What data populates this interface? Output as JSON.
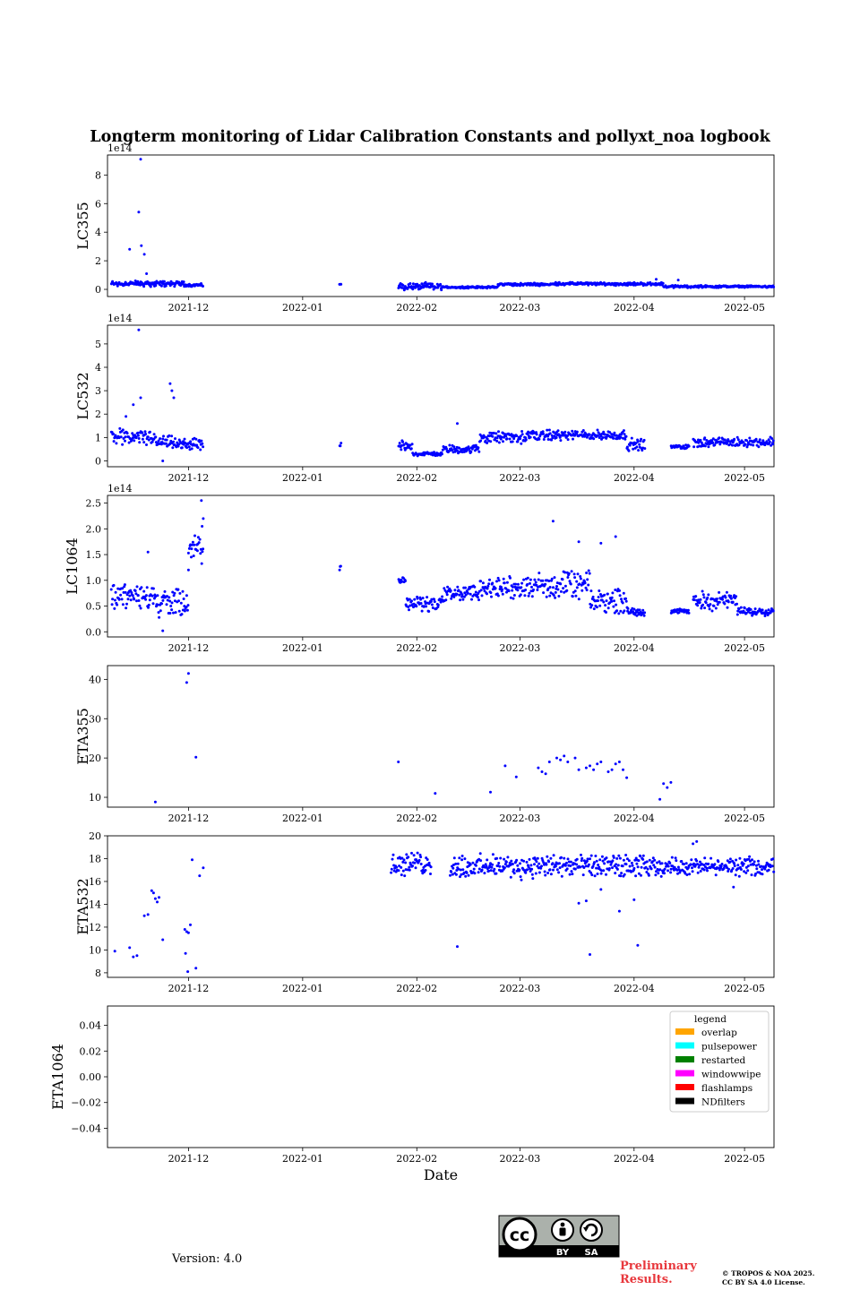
{
  "title": "Longterm monitoring of Lidar Calibration Constants and pollyxt_noa logbook",
  "chart_data": {
    "type": "scatter",
    "series_color": "#0000ff",
    "x_ticks": [
      "2021-12",
      "2022-01",
      "2022-02",
      "2022-03",
      "2022-04",
      "2022-05"
    ],
    "x_ticks_day": [
      31,
      62,
      93,
      121,
      152,
      182
    ],
    "x_range_day": [
      9,
      190
    ],
    "xlabel": "Date",
    "panels": [
      {
        "id": "lc355",
        "ylabel": "LC355",
        "offset_label": "1e14",
        "ylim": [
          -0.5,
          9.4
        ],
        "yticks": [
          0,
          2,
          4,
          6,
          8
        ],
        "ytick_labels": [
          "0",
          "2",
          "4",
          "6",
          "8"
        ],
        "segments": [
          [
            10,
            30,
            0.4,
            0.25
          ],
          [
            30,
            35,
            0.3,
            0.12
          ],
          [
            72,
            72.5,
            0.35,
            0.05
          ],
          [
            88,
            100,
            0.2,
            0.3
          ],
          [
            100,
            115,
            0.15,
            0.08
          ],
          [
            115,
            130,
            0.35,
            0.12
          ],
          [
            130,
            140,
            0.4,
            0.12
          ],
          [
            140,
            160,
            0.38,
            0.12
          ],
          [
            160,
            175,
            0.2,
            0.1
          ],
          [
            175,
            190,
            0.2,
            0.08
          ]
        ],
        "outliers": [
          [
            18,
            9.1
          ],
          [
            17.5,
            5.4
          ],
          [
            15,
            2.8
          ],
          [
            18.2,
            3.05
          ],
          [
            19,
            2.45
          ],
          [
            19.6,
            1.1
          ],
          [
            158,
            0.7
          ],
          [
            164,
            0.65
          ]
        ]
      },
      {
        "id": "lc532",
        "ylabel": "LC532",
        "offset_label": "1e14",
        "ylim": [
          -0.25,
          5.8
        ],
        "yticks": [
          0,
          1,
          2,
          3,
          4,
          5
        ],
        "ytick_labels": [
          "0",
          "1",
          "2",
          "3",
          "4",
          "5"
        ],
        "segments": [
          [
            10,
            22,
            1.0,
            0.4
          ],
          [
            22,
            27,
            0.8,
            0.3
          ],
          [
            27,
            35,
            0.7,
            0.3
          ],
          [
            72,
            72.5,
            0.7,
            0.1
          ],
          [
            88,
            92,
            0.6,
            0.3
          ],
          [
            92,
            100,
            0.3,
            0.1
          ],
          [
            100,
            110,
            0.5,
            0.2
          ],
          [
            110,
            123,
            1.0,
            0.3
          ],
          [
            123,
            150,
            1.1,
            0.25
          ],
          [
            150,
            155,
            0.7,
            0.3
          ],
          [
            162,
            167,
            0.6,
            0.1
          ],
          [
            168,
            190,
            0.8,
            0.25
          ]
        ],
        "outliers": [
          [
            17.5,
            5.6
          ],
          [
            16,
            2.4
          ],
          [
            18,
            2.7
          ],
          [
            26,
            3.3
          ],
          [
            26.5,
            3.0
          ],
          [
            27,
            2.7
          ],
          [
            24,
            0
          ],
          [
            14,
            1.9
          ],
          [
            104,
            1.6
          ]
        ]
      },
      {
        "id": "lc1064",
        "ylabel": "LC1064",
        "offset_label": "1e14",
        "ylim": [
          -0.1,
          2.65
        ],
        "yticks": [
          0,
          0.5,
          1.0,
          1.5,
          2.0,
          2.5
        ],
        "ytick_labels": [
          "0.0",
          "0.5",
          "1.0",
          "1.5",
          "2.0",
          "2.5"
        ],
        "segments": [
          [
            10,
            22,
            0.7,
            0.3
          ],
          [
            22,
            31,
            0.55,
            0.35
          ],
          [
            31,
            35,
            1.6,
            0.3
          ],
          [
            72,
            72.5,
            1.2,
            0.1
          ],
          [
            88,
            90,
            1.0,
            0.1
          ],
          [
            90,
            100,
            0.55,
            0.2
          ],
          [
            100,
            110,
            0.75,
            0.2
          ],
          [
            110,
            123,
            0.85,
            0.25
          ],
          [
            123,
            140,
            0.9,
            0.3
          ],
          [
            140,
            150,
            0.6,
            0.3
          ],
          [
            150,
            155,
            0.4,
            0.1
          ],
          [
            162,
            167,
            0.4,
            0.05
          ],
          [
            168,
            180,
            0.6,
            0.2
          ],
          [
            180,
            190,
            0.4,
            0.1
          ]
        ],
        "outliers": [
          [
            34.5,
            2.55
          ],
          [
            35,
            2.2
          ],
          [
            34.7,
            2.05
          ],
          [
            24,
            0.02
          ],
          [
            20,
            1.55
          ],
          [
            31,
            1.2
          ],
          [
            130,
            2.15
          ],
          [
            147,
            1.85
          ],
          [
            143,
            1.72
          ],
          [
            137,
            1.75
          ]
        ]
      },
      {
        "id": "eta355",
        "ylabel": "ETA355",
        "offset_label": "",
        "ylim": [
          7.5,
          43.5
        ],
        "yticks": [
          10,
          20,
          30,
          40
        ],
        "ytick_labels": [
          "10",
          "20",
          "30",
          "40"
        ],
        "segments": [],
        "outliers": [
          [
            31,
            41.5
          ],
          [
            30.5,
            39.2
          ],
          [
            33,
            20.2
          ],
          [
            22,
            8.8
          ],
          [
            88,
            19
          ],
          [
            98,
            11
          ],
          [
            113,
            11.3
          ],
          [
            117,
            18
          ],
          [
            120,
            15.2
          ],
          [
            126,
            17.5
          ],
          [
            127,
            16.5
          ],
          [
            128,
            16
          ],
          [
            129,
            19
          ],
          [
            131,
            20
          ],
          [
            132,
            19.5
          ],
          [
            133,
            20.5
          ],
          [
            134,
            19
          ],
          [
            136,
            20
          ],
          [
            137,
            17
          ],
          [
            139,
            17.5
          ],
          [
            140,
            18
          ],
          [
            141,
            17
          ],
          [
            142,
            18.5
          ],
          [
            143,
            19
          ],
          [
            145,
            16.5
          ],
          [
            146,
            17
          ],
          [
            147,
            18.5
          ],
          [
            148,
            19
          ],
          [
            149,
            17
          ],
          [
            150,
            15
          ],
          [
            159,
            9.5
          ],
          [
            160,
            13.5
          ],
          [
            161,
            12.5
          ],
          [
            162,
            13.8
          ]
        ]
      },
      {
        "id": "eta532",
        "ylabel": "ETA532",
        "offset_label": "",
        "ylim": [
          7.6,
          20
        ],
        "yticks": [
          8,
          10,
          12,
          14,
          16,
          18,
          20
        ],
        "ytick_labels": [
          "8",
          "10",
          "12",
          "14",
          "16",
          "18",
          "20"
        ],
        "segments": [
          [
            86,
            97,
            17.5,
            1.2
          ],
          [
            102,
            155,
            17.3,
            1.2
          ],
          [
            155,
            190,
            17.3,
            0.9
          ]
        ],
        "outliers": [
          [
            11,
            9.9
          ],
          [
            15,
            10.2
          ],
          [
            16,
            9.4
          ],
          [
            17,
            9.5
          ],
          [
            19,
            13
          ],
          [
            20,
            13.1
          ],
          [
            21,
            15.2
          ],
          [
            21.5,
            15.0
          ],
          [
            22,
            14.5
          ],
          [
            22.5,
            14.2
          ],
          [
            23,
            14.6
          ],
          [
            24,
            10.9
          ],
          [
            30,
            11.8
          ],
          [
            30.5,
            11.6
          ],
          [
            31,
            11.5
          ],
          [
            31.5,
            12.2
          ],
          [
            30.2,
            9.7
          ],
          [
            30.8,
            8.1
          ],
          [
            33,
            8.4
          ],
          [
            32,
            17.9
          ],
          [
            34,
            16.5
          ],
          [
            35,
            17.2
          ],
          [
            104,
            10.3
          ],
          [
            140,
            9.6
          ],
          [
            139,
            14.3
          ],
          [
            137,
            14.1
          ],
          [
            143,
            15.3
          ],
          [
            148,
            13.4
          ],
          [
            152,
            14.4
          ],
          [
            153,
            10.4
          ],
          [
            169,
            19.5
          ],
          [
            168,
            19.3
          ],
          [
            179,
            15.5
          ]
        ]
      },
      {
        "id": "eta1064",
        "ylabel": "ETA1064",
        "offset_label": "",
        "ylim": [
          -0.055,
          0.055
        ],
        "yticks": [
          -0.04,
          -0.02,
          0.0,
          0.02,
          0.04
        ],
        "ytick_labels": [
          "−0.04",
          "−0.02",
          "0.00",
          "0.02",
          "0.04"
        ],
        "segments": [],
        "outliers": []
      }
    ],
    "legend": {
      "title": "legend",
      "position": "upper right",
      "entries": [
        {
          "label": "overlap",
          "color": "#ffa500"
        },
        {
          "label": "pulsepower",
          "color": "#00ffff"
        },
        {
          "label": "restarted",
          "color": "#008000"
        },
        {
          "label": "windowwipe",
          "color": "#ff00ff"
        },
        {
          "label": "flashlamps",
          "color": "#ff0000"
        },
        {
          "label": "NDfilters",
          "color": "#000000"
        }
      ]
    }
  },
  "footer": {
    "version": "Version: 4.0",
    "preliminary": "Preliminary Results.",
    "copyright_line1": "© TROPOS & NOA 2025.",
    "copyright_line2": "CC BY SA 4.0 License.",
    "license_badge_by": "BY",
    "license_badge_sa": "SA",
    "license_badge_cc": "cc"
  }
}
